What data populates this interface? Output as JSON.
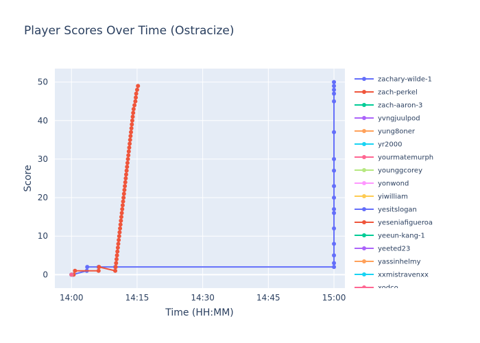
{
  "chart_data": {
    "type": "line",
    "title": "Player Scores Over Time (Ostracize)",
    "xlabel": "Time (HH:MM)",
    "ylabel": "Score",
    "x_ticks": [
      "14:00",
      "14:15",
      "14:30",
      "14:45",
      "15:00"
    ],
    "x_tick_minutes": [
      0,
      15,
      30,
      45,
      60
    ],
    "xlim_minutes": [
      -3.8,
      62.5
    ],
    "y_ticks": [
      0,
      10,
      20,
      30,
      40,
      50
    ],
    "ylim": [
      -3.5,
      53.5
    ],
    "grid": true,
    "legend_placement": "right",
    "series": [
      {
        "name": "zachary-wilde-1",
        "color": "#636efa",
        "points": [
          [
            0,
            0
          ],
          [
            0.3,
            0
          ],
          [
            3.5,
            1
          ],
          [
            3.6,
            2
          ],
          [
            6.2,
            2
          ],
          [
            10,
            2
          ],
          [
            60,
            2
          ],
          [
            60,
            3
          ],
          [
            60,
            5
          ],
          [
            60,
            8
          ],
          [
            60,
            12
          ],
          [
            60,
            16
          ],
          [
            60,
            17
          ],
          [
            60,
            20
          ],
          [
            60,
            23
          ],
          [
            60,
            27
          ],
          [
            60,
            30
          ],
          [
            60,
            37
          ],
          [
            60,
            45
          ],
          [
            60,
            47
          ],
          [
            60,
            48
          ],
          [
            60,
            49
          ],
          [
            60,
            50
          ]
        ]
      },
      {
        "name": "zach-perkel",
        "color": "#ef553b",
        "points": [
          [
            0.5,
            0
          ],
          [
            0.8,
            1
          ],
          [
            6.2,
            1
          ],
          [
            6.3,
            2
          ],
          [
            10.0,
            1
          ],
          [
            10.1,
            2
          ],
          [
            10.2,
            3
          ],
          [
            10.3,
            4
          ],
          [
            10.4,
            5
          ],
          [
            10.5,
            6
          ],
          [
            10.6,
            7
          ],
          [
            10.7,
            8
          ],
          [
            10.8,
            9
          ],
          [
            10.9,
            10
          ],
          [
            11.0,
            11
          ],
          [
            11.1,
            12
          ],
          [
            11.2,
            13
          ],
          [
            11.3,
            14
          ],
          [
            11.4,
            15
          ],
          [
            11.5,
            16
          ],
          [
            11.6,
            17
          ],
          [
            11.7,
            18
          ],
          [
            11.8,
            19
          ],
          [
            11.9,
            20
          ],
          [
            12.0,
            21
          ],
          [
            12.1,
            22
          ],
          [
            12.2,
            23
          ],
          [
            12.3,
            24
          ],
          [
            12.4,
            25
          ],
          [
            12.5,
            26
          ],
          [
            12.6,
            27
          ],
          [
            12.7,
            28
          ],
          [
            12.8,
            29
          ],
          [
            12.9,
            30
          ],
          [
            13.0,
            31
          ],
          [
            13.1,
            32
          ],
          [
            13.2,
            33
          ],
          [
            13.3,
            34
          ],
          [
            13.4,
            35
          ],
          [
            13.5,
            36
          ],
          [
            13.6,
            37
          ],
          [
            13.7,
            38
          ],
          [
            13.8,
            39
          ],
          [
            13.9,
            40
          ],
          [
            14.0,
            41
          ],
          [
            14.1,
            42
          ],
          [
            14.2,
            43
          ],
          [
            14.4,
            44
          ],
          [
            14.6,
            45
          ],
          [
            14.7,
            46
          ],
          [
            14.8,
            47
          ],
          [
            15.0,
            48
          ],
          [
            15.2,
            49
          ]
        ]
      },
      {
        "name": "zach-aaron-3",
        "color": "#00cc96",
        "points": [
          [
            0,
            0
          ]
        ]
      },
      {
        "name": "yvngjuulpod",
        "color": "#ab63fa",
        "points": [
          [
            0,
            0
          ]
        ]
      },
      {
        "name": "yung8oner",
        "color": "#ffa15a",
        "points": [
          [
            0,
            0
          ]
        ]
      },
      {
        "name": "yr2000",
        "color": "#19d3f3",
        "points": [
          [
            0,
            0
          ]
        ]
      },
      {
        "name": "yourmatemurph",
        "color": "#ff6692",
        "points": [
          [
            0,
            0
          ]
        ]
      },
      {
        "name": "younggcorey",
        "color": "#b6e880",
        "points": [
          [
            0,
            0
          ]
        ]
      },
      {
        "name": "yonwond",
        "color": "#ff97ff",
        "points": [
          [
            0,
            0
          ]
        ]
      },
      {
        "name": "yiwilliam",
        "color": "#fecb52",
        "points": [
          [
            0,
            0
          ]
        ]
      },
      {
        "name": "yesitslogan",
        "color": "#636efa",
        "points": [
          [
            0,
            0
          ]
        ]
      },
      {
        "name": "yeseniafigueroa",
        "color": "#ef553b",
        "points": [
          [
            0,
            0
          ]
        ]
      },
      {
        "name": "yeeun-kang-1",
        "color": "#00cc96",
        "points": [
          [
            0,
            0
          ]
        ]
      },
      {
        "name": "yeeted23",
        "color": "#ab63fa",
        "points": [
          [
            0,
            0
          ]
        ]
      },
      {
        "name": "yassinhelmy",
        "color": "#ffa15a",
        "points": [
          [
            0,
            0
          ]
        ]
      },
      {
        "name": "xxmistravenxx",
        "color": "#19d3f3",
        "points": [
          [
            0,
            0
          ]
        ]
      },
      {
        "name": "xodco",
        "color": "#ff6692",
        "points": [
          [
            0,
            0
          ]
        ]
      }
    ]
  }
}
